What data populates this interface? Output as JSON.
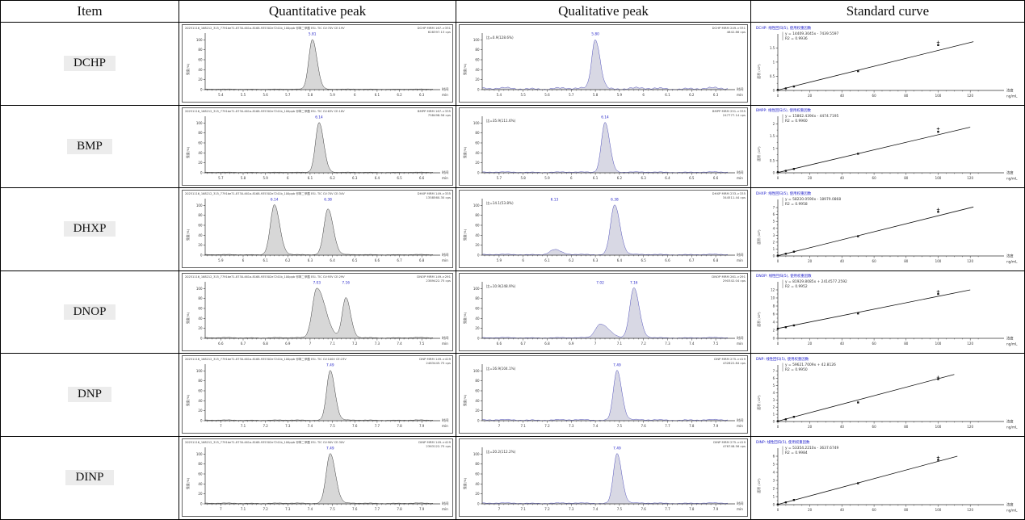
{
  "colors": {
    "trace_blue": "#5050bb",
    "trace_black": "#3c3c3c",
    "peak_fill": "#d7d7d7",
    "peak_fill_blue": "#d8d8e4",
    "label_blue": "#2525c8",
    "curve_title_blue": "#2222cc"
  },
  "table": {
    "headers": [
      "Item",
      "Quantitative peak",
      "Qualitative peak",
      "Standard curve"
    ],
    "axis_labels": {
      "time": "时间",
      "time_unit": "min",
      "intensity": "强度(%)",
      "conc": "浓度",
      "conc_unit": "ng/mL",
      "area": "面积 (10⁶)"
    }
  },
  "chart_data": [
    {
      "item": "DCHP",
      "quantitative_peak": {
        "type": "area",
        "info": "20251116_168212_315_7791be71-8730-461a-8168-935302e7241b_100ppb 邻苯二甲酸 ESI- TIC CV:70V CE:19V",
        "mrm": "DCHP MRM 167->331",
        "cps": "628397.13 cps",
        "x_ticks": [
          5.4,
          5.5,
          5.6,
          5.7,
          5.8,
          5.9,
          6,
          6.1,
          6.2,
          6.3
        ],
        "xlabel": "时间 (min)",
        "ylabel": "强度(%)",
        "ylim": [
          0,
          100
        ],
        "peaks": [
          {
            "rt": 5.81,
            "label": "5.81",
            "height": 100,
            "sigma": 0.016
          }
        ],
        "noise": 0.3
      },
      "qualitative_peak": {
        "type": "area",
        "ratio": "比=0.9(128.6%)",
        "mrm": "DCHP MRM 249->331",
        "cps": "4842.86 cps",
        "x_ticks": [
          5.4,
          5.5,
          5.6,
          5.7,
          5.8,
          5.9,
          6,
          6.1,
          6.2,
          6.3
        ],
        "xlabel": "时间 (min)",
        "ylabel": "强度(%)",
        "ylim": [
          0,
          100
        ],
        "peaks": [
          {
            "rt": 5.8,
            "label": "5.80",
            "height": 100,
            "sigma": 0.015
          }
        ],
        "noise": 2.2
      },
      "standard_curve": {
        "type": "scatter",
        "title": "DCHP: 线性回归(5), 使用权重因数",
        "equation": "y = 14409.3045x - 7439.5597",
        "r2": "R2 = 0.9936",
        "points": [
          [
            0,
            0.02
          ],
          [
            5,
            0.07
          ],
          [
            10,
            0.14
          ],
          [
            50,
            0.68
          ],
          [
            100,
            1.6
          ]
        ],
        "outlier": [
          100,
          1.7
        ],
        "line": [
          [
            0,
            0.01
          ],
          [
            122,
            1.72
          ]
        ],
        "y_ticks": [
          0,
          0.5,
          1,
          1.5
        ],
        "y_max": 1.85,
        "x_ticks": [
          0,
          20,
          40,
          60,
          80,
          100,
          120
        ],
        "xlabel": "浓度 (ng/mL)",
        "ylabel": "面积 (10⁶)"
      }
    },
    {
      "item": "BMP",
      "quantitative_peak": {
        "type": "area",
        "info": "20251116_168212_315_7791be71-8730-461a-8168-935302e7241b_100ppb 邻苯二甲酸 ESI- TIC CV:63V CE:18V",
        "mrm": "BMPP MRM 167->335",
        "cps": "758498.56 cps",
        "x_ticks": [
          5.7,
          5.8,
          5.9,
          6,
          6.1,
          6.2,
          6.3,
          6.4,
          6.5,
          6.6
        ],
        "xlabel": "时间 (min)",
        "ylabel": "强度(%)",
        "ylim": [
          0,
          100
        ],
        "peaks": [
          {
            "rt": 6.14,
            "label": "6.14",
            "height": 100,
            "sigma": 0.016
          }
        ],
        "noise": 0.3
      },
      "qualitative_peak": {
        "type": "area",
        "ratio": "比=35.9(111.6%)",
        "mrm": "BMPP MRM 251->335",
        "cps": "247777.14 cps",
        "x_ticks": [
          5.7,
          5.8,
          5.9,
          6,
          6.1,
          6.2,
          6.3,
          6.4,
          6.5,
          6.6
        ],
        "xlabel": "时间 (min)",
        "ylabel": "强度(%)",
        "ylim": [
          0,
          100
        ],
        "peaks": [
          {
            "rt": 6.14,
            "label": "6.14",
            "height": 100,
            "sigma": 0.015
          }
        ],
        "noise": 0.7
      },
      "standard_curve": {
        "type": "scatter",
        "title": "BMPP: 线性回归(5), 使用权重因数",
        "equation": "y = 15862.4394x - 4474.7195",
        "r2": "R2 = 0.9960",
        "points": [
          [
            0,
            0.03
          ],
          [
            5,
            0.08
          ],
          [
            10,
            0.16
          ],
          [
            50,
            0.78
          ],
          [
            100,
            1.68
          ]
        ],
        "outlier": [
          100,
          1.8
        ],
        "line": [
          [
            0,
            0.01
          ],
          [
            120,
            1.87
          ]
        ],
        "y_ticks": [
          0,
          0.5,
          1,
          1.5,
          2
        ],
        "y_max": 2.15,
        "x_ticks": [
          0,
          20,
          40,
          60,
          80,
          100,
          120
        ],
        "xlabel": "浓度 (ng/mL)",
        "ylabel": "面积 (10⁶)"
      }
    },
    {
      "item": "DHXP",
      "quantitative_peak": {
        "type": "area",
        "info": "20251116_168212_315_7791be71-8730-461a-8168-935302e7241b_100ppb 邻苯二甲酸 ESI- TIC CV:70V CE:34V",
        "mrm": "DHXP MRM 149->335",
        "cps": "1358560.30 cps",
        "x_ticks": [
          5.9,
          6,
          6.1,
          6.2,
          6.3,
          6.4,
          6.5,
          6.6,
          6.7,
          6.8
        ],
        "xlabel": "时间 (min)",
        "ylabel": "强度(%)",
        "ylim": [
          0,
          100
        ],
        "peaks": [
          {
            "rt": 6.14,
            "label": "6.14",
            "height": 100,
            "sigma": 0.018
          },
          {
            "rt": 6.38,
            "label": "6.38",
            "height": 92,
            "sigma": 0.018
          }
        ],
        "noise": 0.4
      },
      "qualitative_peak": {
        "type": "area",
        "ratio": "比=14.1(53.8%)",
        "mrm": "DHXP MRM 233->335",
        "cps": "344511.44 cps",
        "x_ticks": [
          5.9,
          6,
          6.1,
          6.2,
          6.3,
          6.4,
          6.5,
          6.6,
          6.7,
          6.8
        ],
        "xlabel": "时间 (min)",
        "ylabel": "强度(%)",
        "ylim": [
          0,
          100
        ],
        "peaks": [
          {
            "rt": 6.13,
            "label": "6.13",
            "height": 10,
            "sigma": 0.02
          },
          {
            "rt": 6.38,
            "label": "6.38",
            "height": 100,
            "sigma": 0.017
          }
        ],
        "noise": 0.7
      },
      "standard_curve": {
        "type": "scatter",
        "title": "DHXP: 线性回归(5), 使用权重因数",
        "equation": "y = 58220.0590x - 18979.0868",
        "r2": "R2 = 0.9958",
        "points": [
          [
            0,
            0.05
          ],
          [
            5,
            0.32
          ],
          [
            10,
            0.62
          ],
          [
            50,
            2.85
          ],
          [
            100,
            6.4
          ]
        ],
        "outlier": [
          100,
          6.75
        ],
        "line": [
          [
            0,
            0.03
          ],
          [
            122,
            7.1
          ]
        ],
        "y_ticks": [
          0,
          1,
          2,
          3,
          4,
          5,
          6,
          7
        ],
        "y_max": 7.6,
        "x_ticks": [
          0,
          20,
          40,
          60,
          80,
          100,
          120
        ],
        "xlabel": "浓度 (ng/mL)",
        "ylabel": "面积 (10⁶)"
      }
    },
    {
      "item": "DNOP",
      "quantitative_peak": {
        "type": "area",
        "info": "20251116_168212_315_7791be71-8730-461a-8168-935302e7241b_100ppb 邻苯二甲酸 ESI- TIC CV:93V CE:29V",
        "mrm": "DNOP MRM 149->291",
        "cps": "2389422.75 cps",
        "x_ticks": [
          6.6,
          6.7,
          6.8,
          6.9,
          7,
          7.1,
          7.2,
          7.3,
          7.4,
          7.5
        ],
        "xlabel": "时间 (min)",
        "ylabel": "强度(%)",
        "ylim": [
          0,
          100
        ],
        "peaks": [
          {
            "rt": 7.03,
            "label": "7.03",
            "height": 100,
            "sigma": 0.02,
            "tail": 1.9
          },
          {
            "rt": 7.16,
            "label": "7.16",
            "height": 80,
            "sigma": 0.016
          }
        ],
        "noise": 0.6
      },
      "qualitative_peak": {
        "type": "area",
        "ratio": "比=10.9(248.9%)",
        "mrm": "DNOP MRM 261->291",
        "cps": "290342.04 cps",
        "x_ticks": [
          6.6,
          6.7,
          6.8,
          6.9,
          7,
          7.1,
          7.2,
          7.3,
          7.4,
          7.5
        ],
        "xlabel": "时间 (min)",
        "ylabel": "强度(%)",
        "ylim": [
          0,
          100
        ],
        "peaks": [
          {
            "rt": 7.02,
            "label": "7.02",
            "height": 28,
            "sigma": 0.02,
            "tail": 1.8
          },
          {
            "rt": 7.16,
            "label": "7.16",
            "height": 100,
            "sigma": 0.017
          }
        ],
        "noise": 0.6
      },
      "standard_curve": {
        "type": "scatter",
        "title": "DNOP: 线性回归(5), 使用权重因数",
        "equation": "y = 81929.8085x + 2414577.2592",
        "r2": "R2 = 0.9952",
        "points": [
          [
            0,
            2.4
          ],
          [
            5,
            2.75
          ],
          [
            10,
            3.2
          ],
          [
            50,
            6.15
          ],
          [
            100,
            11.0
          ]
        ],
        "outlier": [
          100,
          11.6
        ],
        "line": [
          [
            0,
            2.45
          ],
          [
            120,
            12.0
          ]
        ],
        "y_ticks": [
          0,
          2,
          4,
          6,
          8,
          10,
          12
        ],
        "y_max": 13,
        "x_ticks": [
          0,
          20,
          40,
          60,
          80,
          100,
          120
        ],
        "xlabel": "浓度 (ng/mL)",
        "ylabel": "面积 (10⁶)"
      }
    },
    {
      "item": "DNP",
      "quantitative_peak": {
        "type": "area",
        "info": "20251116_168212_315_7791be71-8730-461a-8168-935302e7241b_100ppb 邻苯二甲酸 ESI- TIC CV:100V CE:23V",
        "mrm": "DNP MRM 149->419",
        "cps": "2483445.75 cps",
        "x_ticks": [
          7,
          7.1,
          7.2,
          7.3,
          7.4,
          7.5,
          7.6,
          7.7,
          7.8,
          7.9
        ],
        "xlabel": "时间 (min)",
        "ylabel": "强度(%)",
        "ylim": [
          0,
          100
        ],
        "peaks": [
          {
            "rt": 7.49,
            "label": "7.49",
            "height": 100,
            "sigma": 0.016
          }
        ],
        "noise": 0.5
      },
      "qualitative_peak": {
        "type": "area",
        "ratio": "比=16.9(104.1%)",
        "mrm": "DNP MRM 275->419",
        "cps": "432822.84 cps",
        "x_ticks": [
          7,
          7.1,
          7.2,
          7.3,
          7.4,
          7.5,
          7.6,
          7.7,
          7.8,
          7.9
        ],
        "xlabel": "时间 (min)",
        "ylabel": "强度(%)",
        "ylim": [
          0,
          100
        ],
        "peaks": [
          {
            "rt": 7.49,
            "label": "7.49",
            "height": 100,
            "sigma": 0.015
          }
        ],
        "noise": 1.1
      },
      "standard_curve": {
        "type": "scatter",
        "title": "DNP: 线性回归(5), 使用权重因数",
        "equation": "y = 59621.7009x + 42.8126",
        "r2": "R2 = 0.9950",
        "points": [
          [
            0,
            0.05
          ],
          [
            5,
            0.3
          ],
          [
            10,
            0.65
          ],
          [
            50,
            2.65
          ],
          [
            100,
            5.9
          ]
        ],
        "outlier": [
          100,
          6.15
        ],
        "line": [
          [
            0,
            0.05
          ],
          [
            110,
            6.55
          ]
        ],
        "y_ticks": [
          0,
          1,
          2,
          3,
          4,
          5,
          6,
          7
        ],
        "y_max": 7.3,
        "x_ticks": [
          0,
          20,
          40,
          60,
          80,
          100,
          120
        ],
        "xlabel": "浓度 (ng/mL)",
        "ylabel": "面积 (10⁶)"
      }
    },
    {
      "item": "DINP",
      "quantitative_peak": {
        "type": "area",
        "info": "20251116_168212_315_7791be71-8730-461a-8168-935302e7241b_100ppb 邻苯二甲酸 ESI- TIC CV:90V CE:30V",
        "mrm": "DINP MRM 149->419",
        "cps": "2363122.75 cps",
        "x_ticks": [
          7,
          7.1,
          7.2,
          7.3,
          7.4,
          7.5,
          7.6,
          7.7,
          7.8,
          7.9
        ],
        "xlabel": "时间 (min)",
        "ylabel": "强度(%)",
        "ylim": [
          0,
          100
        ],
        "peaks": [
          {
            "rt": 7.49,
            "label": "7.49",
            "height": 100,
            "sigma": 0.018
          }
        ],
        "noise": 0.6
      },
      "qualitative_peak": {
        "type": "area",
        "ratio": "比=20.2(112.2%)",
        "mrm": "DINP MRM 275->419",
        "cps": "476748.56 cps",
        "x_ticks": [
          7,
          7.1,
          7.2,
          7.3,
          7.4,
          7.5,
          7.6,
          7.7,
          7.8,
          7.9
        ],
        "xlabel": "时间 (min)",
        "ylabel": "强度(%)",
        "ylim": [
          0,
          100
        ],
        "peaks": [
          {
            "rt": 7.49,
            "label": "7.49",
            "height": 100,
            "sigma": 0.015
          }
        ],
        "noise": 0.8
      },
      "standard_curve": {
        "type": "scatter",
        "title": "DINP: 线性回归(5), 使用权重因数",
        "equation": "y = 53354.2210x - 3637.6749",
        "r2": "R2 = 0.9984",
        "points": [
          [
            0,
            0.03
          ],
          [
            5,
            0.28
          ],
          [
            10,
            0.58
          ],
          [
            50,
            2.65
          ],
          [
            100,
            5.55
          ]
        ],
        "outlier": [
          100,
          5.85
        ],
        "line": [
          [
            0,
            0.02
          ],
          [
            112,
            6.0
          ]
        ],
        "y_ticks": [
          0,
          1,
          2,
          3,
          4,
          5,
          6
        ],
        "y_max": 6.5,
        "x_ticks": [
          0,
          20,
          40,
          60,
          80,
          100,
          120
        ],
        "xlabel": "浓度 (ng/mL)",
        "ylabel": "面积 (10⁶)"
      }
    }
  ]
}
